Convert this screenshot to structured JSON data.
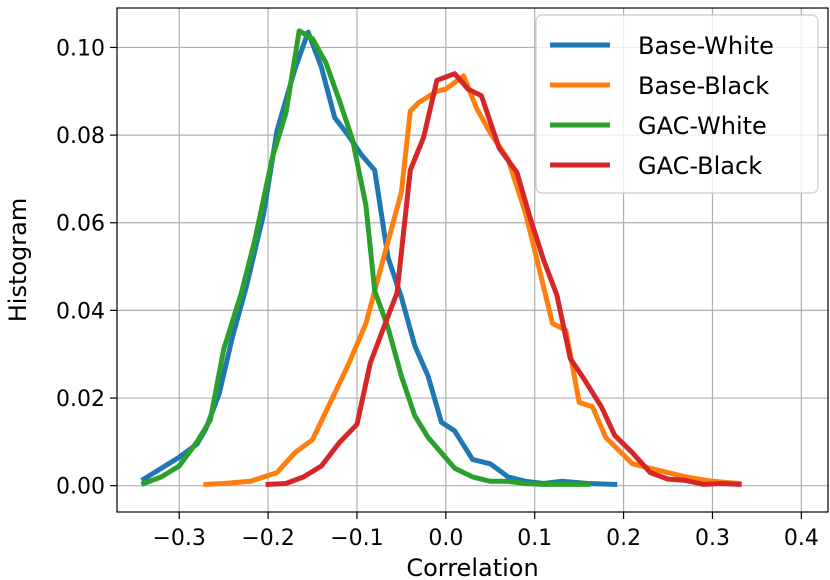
{
  "chart_data": {
    "type": "line",
    "title": "",
    "xlabel": "Correlation",
    "ylabel": "Histogram",
    "xlim": [
      -0.37,
      0.43
    ],
    "ylim": [
      -0.006,
      0.109
    ],
    "xticks": [
      -0.3,
      -0.2,
      -0.1,
      0.0,
      0.1,
      0.2,
      0.3,
      0.4
    ],
    "xtick_labels": [
      "−0.3",
      "−0.2",
      "−0.1",
      "0.0",
      "0.1",
      "0.2",
      "0.3",
      "0.4"
    ],
    "yticks": [
      0.0,
      0.02,
      0.04,
      0.06,
      0.08,
      0.1
    ],
    "ytick_labels": [
      "0.00",
      "0.02",
      "0.04",
      "0.06",
      "0.08",
      "0.10"
    ],
    "grid": true,
    "legend": "top-right",
    "series": [
      {
        "name": "Base-White",
        "color": "#1f77b4",
        "points": [
          [
            -0.34,
            0.0015
          ],
          [
            -0.32,
            0.004
          ],
          [
            -0.3,
            0.0065
          ],
          [
            -0.28,
            0.0095
          ],
          [
            -0.27,
            0.013
          ],
          [
            -0.255,
            0.021
          ],
          [
            -0.24,
            0.034
          ],
          [
            -0.225,
            0.045
          ],
          [
            -0.205,
            0.062
          ],
          [
            -0.19,
            0.081
          ],
          [
            -0.17,
            0.095
          ],
          [
            -0.155,
            0.1035
          ],
          [
            -0.14,
            0.0955
          ],
          [
            -0.125,
            0.084
          ],
          [
            -0.11,
            0.08
          ],
          [
            -0.095,
            0.0755
          ],
          [
            -0.08,
            0.072
          ],
          [
            -0.065,
            0.052
          ],
          [
            -0.05,
            0.043
          ],
          [
            -0.035,
            0.032
          ],
          [
            -0.02,
            0.025
          ],
          [
            -0.005,
            0.0145
          ],
          [
            0.01,
            0.0125
          ],
          [
            0.03,
            0.006
          ],
          [
            0.05,
            0.005
          ],
          [
            0.07,
            0.002
          ],
          [
            0.09,
            0.001
          ],
          [
            0.11,
            0.0005
          ],
          [
            0.13,
            0.001
          ],
          [
            0.16,
            0.0005
          ],
          [
            0.19,
            0.0003
          ]
        ]
      },
      {
        "name": "Base-Black",
        "color": "#ff7f0e",
        "points": [
          [
            -0.27,
            0.0003
          ],
          [
            -0.25,
            0.0005
          ],
          [
            -0.22,
            0.001
          ],
          [
            -0.19,
            0.003
          ],
          [
            -0.17,
            0.0075
          ],
          [
            -0.15,
            0.0105
          ],
          [
            -0.13,
            0.019
          ],
          [
            -0.11,
            0.0275
          ],
          [
            -0.09,
            0.037
          ],
          [
            -0.07,
            0.052
          ],
          [
            -0.05,
            0.067
          ],
          [
            -0.04,
            0.0855
          ],
          [
            -0.03,
            0.0875
          ],
          [
            -0.01,
            0.09
          ],
          [
            0.0,
            0.0905
          ],
          [
            0.02,
            0.0935
          ],
          [
            0.035,
            0.086
          ],
          [
            0.05,
            0.0805
          ],
          [
            0.07,
            0.0745
          ],
          [
            0.09,
            0.062
          ],
          [
            0.105,
            0.0495
          ],
          [
            0.12,
            0.037
          ],
          [
            0.135,
            0.0355
          ],
          [
            0.15,
            0.019
          ],
          [
            0.165,
            0.018
          ],
          [
            0.18,
            0.011
          ],
          [
            0.21,
            0.005
          ],
          [
            0.24,
            0.0035
          ],
          [
            0.27,
            0.002
          ],
          [
            0.3,
            0.001
          ],
          [
            0.33,
            0.0005
          ]
        ]
      },
      {
        "name": "GAC-White",
        "color": "#2ca02c",
        "points": [
          [
            -0.34,
            0.0005
          ],
          [
            -0.32,
            0.002
          ],
          [
            -0.3,
            0.0045
          ],
          [
            -0.28,
            0.01
          ],
          [
            -0.265,
            0.015
          ],
          [
            -0.25,
            0.031
          ],
          [
            -0.23,
            0.044
          ],
          [
            -0.215,
            0.056
          ],
          [
            -0.195,
            0.075
          ],
          [
            -0.18,
            0.085
          ],
          [
            -0.165,
            0.1038
          ],
          [
            -0.15,
            0.102
          ],
          [
            -0.135,
            0.0965
          ],
          [
            -0.12,
            0.088
          ],
          [
            -0.105,
            0.079
          ],
          [
            -0.09,
            0.064
          ],
          [
            -0.08,
            0.0445
          ],
          [
            -0.065,
            0.036
          ],
          [
            -0.05,
            0.025
          ],
          [
            -0.035,
            0.016
          ],
          [
            -0.02,
            0.011
          ],
          [
            -0.005,
            0.0075
          ],
          [
            0.01,
            0.004
          ],
          [
            0.03,
            0.002
          ],
          [
            0.05,
            0.001
          ],
          [
            0.07,
            0.001
          ],
          [
            0.09,
            0.0005
          ],
          [
            0.11,
            0.0003
          ],
          [
            0.13,
            0.0003
          ],
          [
            0.16,
            0.0003
          ]
        ]
      },
      {
        "name": "GAC-Black",
        "color": "#d62728",
        "points": [
          [
            -0.2,
            0.0003
          ],
          [
            -0.18,
            0.0005
          ],
          [
            -0.16,
            0.002
          ],
          [
            -0.14,
            0.0045
          ],
          [
            -0.12,
            0.0098
          ],
          [
            -0.1,
            0.014
          ],
          [
            -0.085,
            0.028
          ],
          [
            -0.07,
            0.036
          ],
          [
            -0.055,
            0.044
          ],
          [
            -0.04,
            0.072
          ],
          [
            -0.025,
            0.0795
          ],
          [
            -0.01,
            0.0925
          ],
          [
            0.01,
            0.094
          ],
          [
            0.025,
            0.0905
          ],
          [
            0.04,
            0.089
          ],
          [
            0.06,
            0.077
          ],
          [
            0.08,
            0.0715
          ],
          [
            0.095,
            0.061
          ],
          [
            0.11,
            0.0515
          ],
          [
            0.125,
            0.0435
          ],
          [
            0.14,
            0.029
          ],
          [
            0.155,
            0.0245
          ],
          [
            0.175,
            0.018
          ],
          [
            0.19,
            0.0115
          ],
          [
            0.21,
            0.0075
          ],
          [
            0.23,
            0.003
          ],
          [
            0.25,
            0.0015
          ],
          [
            0.27,
            0.0012
          ],
          [
            0.29,
            0.0003
          ],
          [
            0.31,
            0.0005
          ],
          [
            0.33,
            0.0003
          ]
        ]
      }
    ]
  }
}
